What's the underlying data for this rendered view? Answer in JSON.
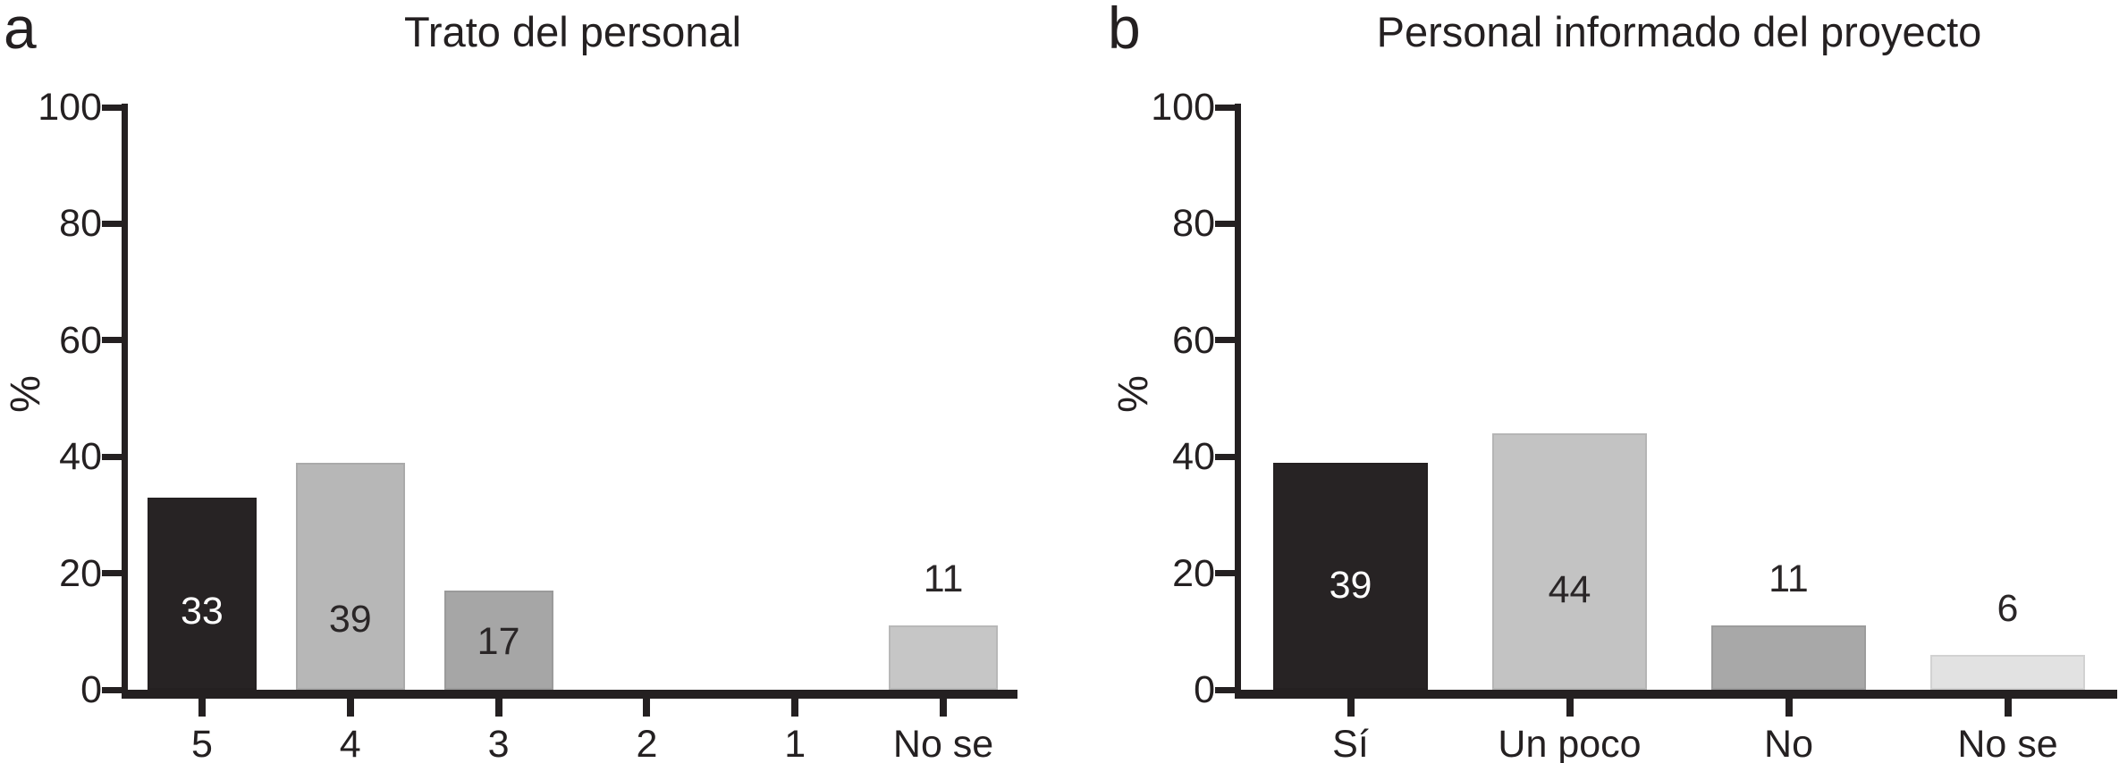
{
  "figure": {
    "background": "#ffffff",
    "ink": "#242021"
  },
  "chart_data": [
    {
      "type": "bar",
      "panel_label": "a",
      "title": "Trato del personal",
      "ylabel": "%",
      "xlabel": "",
      "ylim": [
        0,
        100
      ],
      "yticks": [
        100,
        80,
        60,
        40,
        20,
        0
      ],
      "grid": false,
      "legend": "none",
      "categories": [
        "5",
        "4",
        "3",
        "2",
        "1",
        "No se"
      ],
      "values": [
        33,
        39,
        17,
        0,
        0,
        11
      ],
      "bars": [
        {
          "category": "5",
          "value": 33,
          "color": "#272324",
          "label": "33",
          "label_color": "#ffffff",
          "label_position": "inside",
          "label_top_pct": 59
        },
        {
          "category": "4",
          "value": 39,
          "color": "#b7b7b7",
          "label": "39",
          "label_color": "#2a2627",
          "label_position": "inside",
          "label_top_pct": 69
        },
        {
          "category": "3",
          "value": 17,
          "color": "#a6a6a6",
          "label": "17",
          "label_color": "#2a2627",
          "label_position": "inside",
          "label_top_pct": 51
        },
        {
          "category": "2",
          "value": 0,
          "color": null,
          "label": "",
          "label_color": null,
          "label_position": "none",
          "label_top_pct": 0
        },
        {
          "category": "1",
          "value": 0,
          "color": null,
          "label": "",
          "label_color": null,
          "label_position": "none",
          "label_top_pct": 0
        },
        {
          "category": "No se",
          "value": 11,
          "color": "#c6c6c6",
          "label": "11",
          "label_color": "#2a2627",
          "label_position": "above",
          "label_top_pct": 0
        }
      ]
    },
    {
      "type": "bar",
      "panel_label": "b",
      "title": "Personal informado del proyecto",
      "ylabel": "%",
      "xlabel": "",
      "ylim": [
        0,
        100
      ],
      "yticks": [
        100,
        80,
        60,
        40,
        20,
        0
      ],
      "grid": false,
      "legend": "none",
      "categories": [
        "Sí",
        "Un poco",
        "No",
        "No se"
      ],
      "values": [
        39,
        44,
        11,
        6
      ],
      "bars": [
        {
          "category": "Sí",
          "value": 39,
          "color": "#272324",
          "label": "39",
          "label_color": "#ffffff",
          "label_position": "inside",
          "label_top_pct": 54
        },
        {
          "category": "Un poco",
          "value": 44,
          "color": "#c3c3c3",
          "label": "44",
          "label_color": "#2a2627",
          "label_position": "inside",
          "label_top_pct": 61
        },
        {
          "category": "No",
          "value": 11,
          "color": "#a8a8a8",
          "label": "11",
          "label_color": "#2a2627",
          "label_position": "above",
          "label_top_pct": 0
        },
        {
          "category": "No se",
          "value": 6,
          "color": "#e2e2e2",
          "label": "6",
          "label_color": "#2a2627",
          "label_position": "above",
          "label_top_pct": 0
        }
      ]
    }
  ]
}
